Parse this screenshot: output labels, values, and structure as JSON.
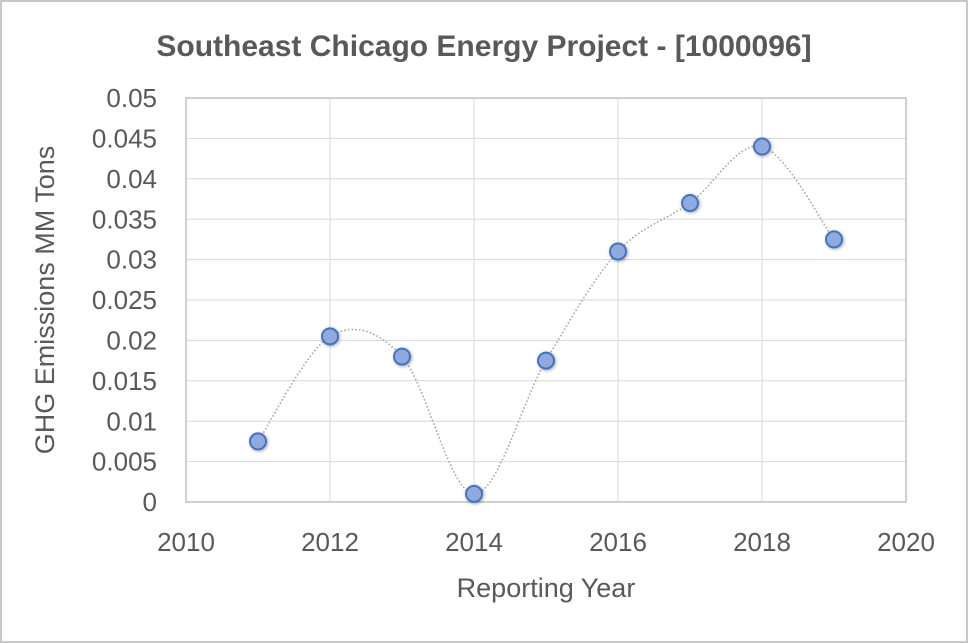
{
  "window": {
    "background": "#ffffff",
    "frame_border_color": "#c8c8c8"
  },
  "chart_data": {
    "type": "scatter",
    "title": "Southeast Chicago Energy Project - [1000096]",
    "xlabel": "Reporting Year",
    "ylabel": "GHG Emissions MM Tons",
    "x": [
      2011,
      2012,
      2013,
      2014,
      2015,
      2016,
      2017,
      2018,
      2019
    ],
    "values": [
      0.0075,
      0.0205,
      0.018,
      0.001,
      0.0175,
      0.031,
      0.037,
      0.044,
      0.0325
    ],
    "xlim": [
      2010,
      2020
    ],
    "ylim": [
      0,
      0.05
    ],
    "x_ticks": [
      2010,
      2012,
      2014,
      2016,
      2018,
      2020
    ],
    "y_ticks": [
      0,
      0.005,
      0.01,
      0.015,
      0.02,
      0.025,
      0.03,
      0.035,
      0.04,
      0.045,
      0.05
    ],
    "grid": true,
    "legend_position": "none",
    "line_style": "smooth-dotted",
    "marker_shape": "circle",
    "colors": {
      "marker_fill": "#8faadc",
      "marker_border": "#4472c4",
      "trend_line": "#a6a6a6",
      "gridline": "#d9d9d9",
      "plot_border": "#bfbfbf",
      "text": "#595959"
    }
  }
}
